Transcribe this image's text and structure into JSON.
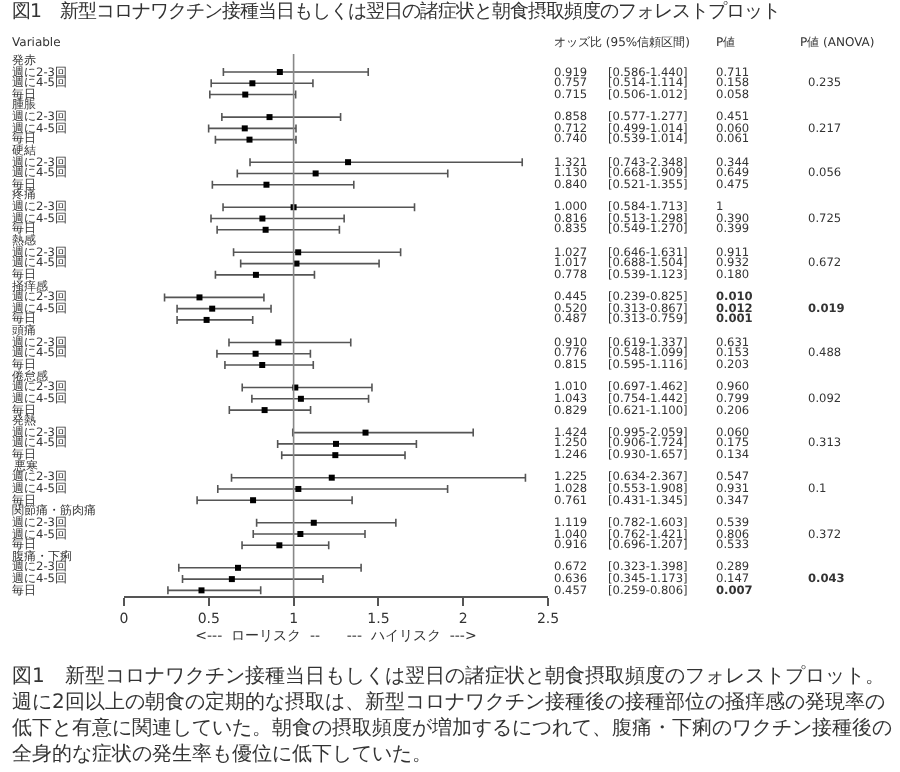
{
  "chart_data": {
    "type": "scatter",
    "orientation": "horizontal",
    "title": "図1　新型コロナワクチン接種当日もしくは翌日の諸症状と朝食摂取頻度のフォレストプロット",
    "ylabel": "Variable",
    "xlabel": "<---  ローリスク  --      ---  ハイリスク  --->",
    "categories": [
      "発赤",
      "週に2-3回",
      "週に4-5回",
      "毎日",
      "腫脹",
      "週に2-3回",
      "週に4-5回",
      "毎日",
      "硬結",
      "週に2-3回",
      "週に4-5回",
      "毎日",
      "疼痛",
      "週に2-3回",
      "週に4-5回",
      "毎日",
      "熱感",
      "週に2-3回",
      "週に4-5回",
      "毎日",
      "掻痒感",
      "週に2-3回",
      "週に4-5回",
      "毎日",
      "頭痛",
      "週に2-3回",
      "週に4-5回",
      "毎日",
      "倦怠感",
      "週に2-3回",
      "週に4-5回",
      "毎日",
      "発熱",
      "週に2-3回",
      "週に4-5回",
      "毎日",
      "悪寒",
      "週に2-3回",
      "週に4-5回",
      "毎日",
      "関節痛・筋肉痛",
      "週に2-3回",
      "週に4-5回",
      "毎日",
      "腹痛・下痢",
      "週に2-3回",
      "週に4-5回",
      "毎日"
    ],
    "series": [
      {
        "color": "#000000",
        "values": [
          null,
          0.919,
          0.757,
          0.715,
          null,
          0.858,
          0.712,
          0.74,
          null,
          1.321,
          1.13,
          0.84,
          null,
          1.0,
          0.816,
          0.835,
          null,
          1.027,
          1.017,
          0.778,
          null,
          0.445,
          0.52,
          0.487,
          null,
          0.91,
          0.776,
          0.815,
          null,
          1.01,
          1.043,
          0.829,
          null,
          1.424,
          1.25,
          1.246,
          null,
          1.225,
          1.028,
          0.761,
          null,
          1.119,
          1.04,
          0.916,
          null,
          0.672,
          0.636,
          0.457
        ],
        "value_labels": [
          null,
          "0.919",
          "0.757",
          "0.715",
          null,
          "0.858",
          "0.712",
          "0.740",
          null,
          "1.321",
          "1.130",
          "0.840",
          null,
          "1.000",
          "0.816",
          "0.835",
          null,
          "1.027",
          "1.017",
          "0.778",
          null,
          "0.445",
          "0.520",
          "0.487",
          null,
          "0.910",
          "0.776",
          "0.815",
          null,
          "1.010",
          "1.043",
          "0.829",
          null,
          "1.424",
          "1.250",
          "1.246",
          null,
          "1.225",
          "1.028",
          "0.761",
          null,
          "1.119",
          "1.040",
          "0.916",
          null,
          "0.672",
          "0.636",
          "0.457"
        ],
        "errors": [
          null,
          [
            0.586,
            1.44
          ],
          [
            0.514,
            1.114
          ],
          [
            0.506,
            1.012
          ],
          null,
          [
            0.577,
            1.277
          ],
          [
            0.499,
            1.014
          ],
          [
            0.539,
            1.014
          ],
          null,
          [
            0.743,
            2.348
          ],
          [
            0.668,
            1.909
          ],
          [
            0.521,
            1.355
          ],
          null,
          [
            0.584,
            1.713
          ],
          [
            0.513,
            1.298
          ],
          [
            0.549,
            1.27
          ],
          null,
          [
            0.646,
            1.631
          ],
          [
            0.688,
            1.504
          ],
          [
            0.539,
            1.123
          ],
          null,
          [
            0.239,
            0.825
          ],
          [
            0.313,
            0.867
          ],
          [
            0.313,
            0.759
          ],
          null,
          [
            0.619,
            1.337
          ],
          [
            0.548,
            1.099
          ],
          [
            0.595,
            1.116
          ],
          null,
          [
            0.697,
            1.462
          ],
          [
            0.754,
            1.442
          ],
          [
            0.621,
            1.1
          ],
          null,
          [
            0.995,
            2.059
          ],
          [
            0.906,
            1.724
          ],
          [
            0.93,
            1.657
          ],
          null,
          [
            0.634,
            2.367
          ],
          [
            0.553,
            1.908
          ],
          [
            0.431,
            1.345
          ],
          null,
          [
            0.782,
            1.603
          ],
          [
            0.762,
            1.421
          ],
          [
            0.696,
            1.207
          ],
          null,
          [
            0.323,
            1.398
          ],
          [
            0.345,
            1.173
          ],
          [
            0.259,
            0.806
          ]
        ]
      }
    ],
    "xlim": [
      0,
      2.5
    ],
    "xticks": [
      0,
      0.5,
      1,
      1.5,
      2,
      2.5
    ],
    "ref_lines": [
      {
        "axis": "x",
        "value": 1,
        "color": "#888888"
      }
    ],
    "marker": "square",
    "annotations": [
      "オッズ比 (95%信頼区間)",
      "P値",
      "P値 (ANOVA)",
      "[0.586-1.440]",
      "[0.514-1.114]",
      "[0.506-1.012]",
      "[0.577-1.277]",
      "[0.499-1.014]",
      "[0.539-1.014]",
      "[0.743-2.348]",
      "[0.668-1.909]",
      "[0.521-1.355]",
      "[0.584-1.713]",
      "[0.513-1.298]",
      "[0.549-1.270]",
      "[0.646-1.631]",
      "[0.688-1.504]",
      "[0.539-1.123]",
      "[0.239-0.825]",
      "[0.313-0.867]",
      "[0.313-0.759]",
      "[0.619-1.337]",
      "[0.548-1.099]",
      "[0.595-1.116]",
      "[0.697-1.462]",
      "[0.754-1.442]",
      "[0.621-1.100]",
      "[0.995-2.059]",
      "[0.906-1.724]",
      "[0.930-1.657]",
      "[0.634-2.367]",
      "[0.553-1.908]",
      "[0.431-1.345]",
      "[0.782-1.603]",
      "[0.762-1.421]",
      "[0.696-1.207]",
      "[0.323-1.398]",
      "[0.345-1.173]",
      "[0.259-0.806]",
      "0.711",
      "0.158",
      "0.058",
      "0.451",
      "0.060",
      "0.061",
      "0.344",
      "0.649",
      "0.475",
      "1",
      "0.390",
      "0.399",
      "0.911",
      "0.932",
      "0.180",
      "0.010",
      "0.012",
      "0.001",
      "0.631",
      "0.153",
      "0.203",
      "0.960",
      "0.799",
      "0.206",
      "0.060",
      "0.175",
      "0.134",
      "0.547",
      "0.931",
      "0.347",
      "0.539",
      "0.806",
      "0.533",
      "0.289",
      "0.147",
      "0.007",
      "0.235",
      "0.217",
      "0.056",
      "0.725",
      "0.672",
      "0.019",
      "0.488",
      "0.092",
      "0.313",
      "0.1",
      "0.372",
      "0.043",
      "図1　新型コロナワクチン接種当日もしくは翌日の諸症状と朝食摂取頻度のフォレストプロット。週に2回以上の朝食の定期的な摂取は、新型コロナワクチン接種後の接種部位の掻痒感の発現率の低下と有意に関連していた。朝食の摂取頻度が増加するにつれて、腹痛・下痢のワクチン接種後の全身的な症状の発生率も優位に低下していた。"
    ]
  }
}
